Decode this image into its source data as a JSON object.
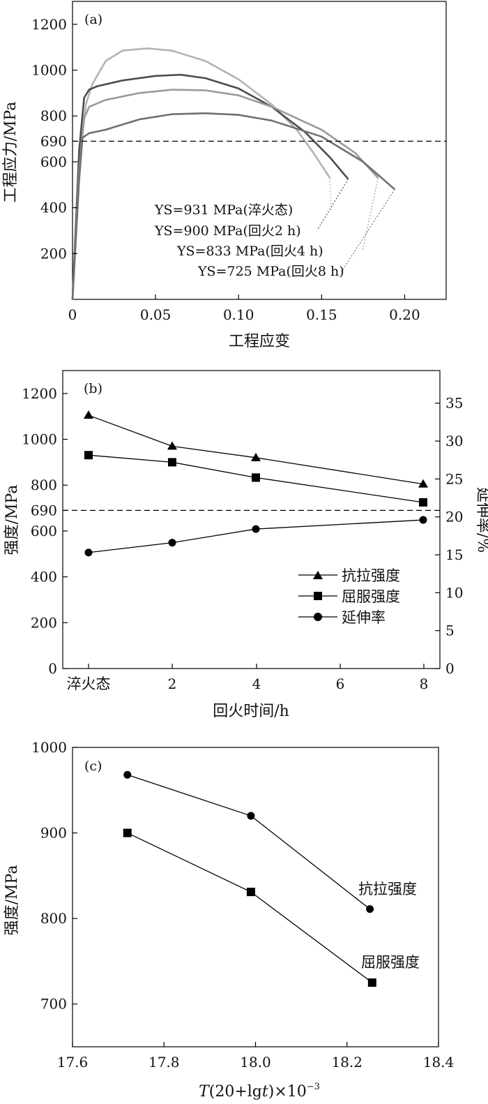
{
  "chart_data": [
    {
      "panel": "(a)",
      "type": "line",
      "xlabel": "工程应变",
      "ylabel": "工程应力/MPa",
      "xlim": [
        0,
        0.225
      ],
      "ylim": [
        0,
        1300
      ],
      "xticks": [
        "0",
        "0.05",
        "0.10",
        "0.15",
        "0.20"
      ],
      "yticks": [
        "200",
        "400",
        "600",
        "690",
        "800",
        "1000",
        "1200"
      ],
      "reference_line": {
        "y": 690,
        "style": "dashed"
      },
      "annotations": [
        "YS=931 MPa(淬火态)",
        "YS=900 MPa(回火2 h)",
        "YS=833 MPa(回火4 h)",
        "YS=725 MPa(回火8 h)"
      ],
      "series": [
        {
          "color": "#b3b3b3",
          "points": [
            [
              0,
              0
            ],
            [
              0.004,
              600
            ],
            [
              0.008,
              850
            ],
            [
              0.012,
              940
            ],
            [
              0.02,
              1040
            ],
            [
              0.03,
              1085
            ],
            [
              0.045,
              1095
            ],
            [
              0.06,
              1085
            ],
            [
              0.08,
              1040
            ],
            [
              0.1,
              960
            ],
            [
              0.12,
              850
            ],
            [
              0.135,
              740
            ],
            [
              0.145,
              640
            ],
            [
              0.155,
              530
            ]
          ]
        },
        {
          "color": "#4d4d4d",
          "points": [
            [
              0,
              0
            ],
            [
              0.004,
              650
            ],
            [
              0.007,
              880
            ],
            [
              0.01,
              915
            ],
            [
              0.015,
              930
            ],
            [
              0.03,
              955
            ],
            [
              0.05,
              975
            ],
            [
              0.065,
              980
            ],
            [
              0.08,
              965
            ],
            [
              0.1,
              920
            ],
            [
              0.12,
              840
            ],
            [
              0.14,
              730
            ],
            [
              0.155,
              620
            ],
            [
              0.166,
              525
            ]
          ]
        },
        {
          "color": "#9a9a9a",
          "points": [
            [
              0,
              0
            ],
            [
              0.004,
              560
            ],
            [
              0.007,
              790
            ],
            [
              0.01,
              840
            ],
            [
              0.02,
              870
            ],
            [
              0.04,
              900
            ],
            [
              0.06,
              915
            ],
            [
              0.08,
              912
            ],
            [
              0.1,
              890
            ],
            [
              0.12,
              840
            ],
            [
              0.15,
              740
            ],
            [
              0.17,
              640
            ],
            [
              0.184,
              530
            ]
          ]
        },
        {
          "color": "#6f6f6f",
          "points": [
            [
              0,
              0
            ],
            [
              0.004,
              520
            ],
            [
              0.006,
              705
            ],
            [
              0.01,
              725
            ],
            [
              0.02,
              740
            ],
            [
              0.04,
              785
            ],
            [
              0.06,
              808
            ],
            [
              0.08,
              812
            ],
            [
              0.1,
              805
            ],
            [
              0.12,
              780
            ],
            [
              0.15,
              710
            ],
            [
              0.175,
              600
            ],
            [
              0.194,
              480
            ]
          ]
        }
      ]
    },
    {
      "panel": "(b)",
      "type": "line",
      "xlabel": "回火时间/h",
      "ylabel": "强度/MPa",
      "y2label": "延伸率/%",
      "categories": [
        "淬火态",
        "2",
        "4",
        "6",
        "8"
      ],
      "ylim": [
        0,
        1300
      ],
      "y2lim": [
        0,
        39.3
      ],
      "yticks": [
        "0",
        "200",
        "400",
        "600",
        "690",
        "800",
        "1000",
        "1200"
      ],
      "y2ticks": [
        "0",
        "5",
        "10",
        "15",
        "20",
        "25",
        "30",
        "35"
      ],
      "reference_line": {
        "y": 690,
        "style": "dashed"
      },
      "legend_position": "bottom-right",
      "series": [
        {
          "name": "抗拉强度",
          "marker": "triangle",
          "axis": "left",
          "x": [
            0,
            2,
            4,
            8
          ],
          "values": [
            1105,
            970,
            920,
            805
          ]
        },
        {
          "name": "屈服强度",
          "marker": "square",
          "axis": "left",
          "x": [
            0,
            2,
            4,
            8
          ],
          "values": [
            931,
            900,
            833,
            725
          ]
        },
        {
          "name": "延伸率",
          "marker": "circle",
          "axis": "right",
          "x": [
            0,
            2,
            4,
            8
          ],
          "values": [
            15.3,
            16.6,
            18.4,
            19.6
          ]
        }
      ]
    },
    {
      "panel": "(c)",
      "type": "line",
      "xlabel_main": "T",
      "xlabel_rest": "(20+lg",
      "xlabel_t": "t",
      "xlabel_end": ")×10",
      "xlabel_sup": "−3",
      "ylabel": "强度/MPa",
      "xlim": [
        17.6,
        18.4
      ],
      "ylim": [
        650,
        1000
      ],
      "xticks": [
        "17.6",
        "17.8",
        "18.0",
        "18.2",
        "18.4"
      ],
      "yticks": [
        "700",
        "800",
        "900",
        "1000"
      ],
      "series": [
        {
          "name": "抗拉强度",
          "marker": "circle",
          "x": [
            17.72,
            17.99,
            18.25
          ],
          "values": [
            968,
            920,
            811
          ]
        },
        {
          "name": "屈服强度",
          "marker": "square",
          "x": [
            17.72,
            17.99,
            18.255
          ],
          "values": [
            900,
            831,
            725
          ]
        }
      ]
    }
  ]
}
